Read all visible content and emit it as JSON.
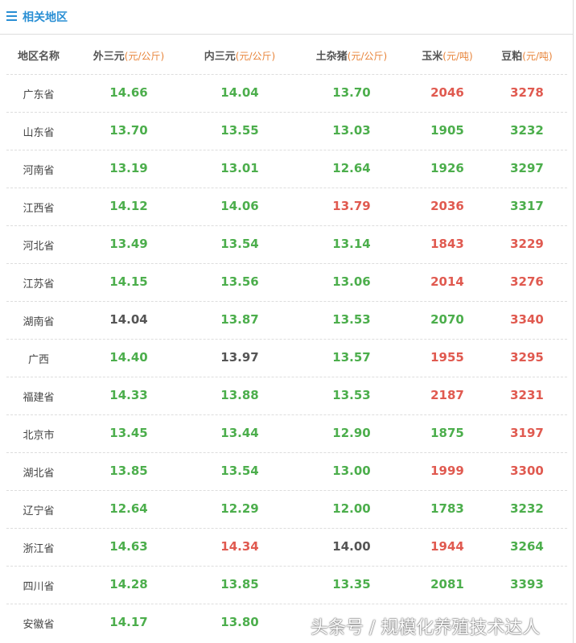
{
  "header": {
    "title": "相关地区"
  },
  "table": {
    "columns": [
      {
        "name": "地区名称"
      },
      {
        "name": "外三元",
        "unit": "(元/公斤)"
      },
      {
        "name": "内三元",
        "unit": "(元/公斤)"
      },
      {
        "name": "土杂猪",
        "unit": "(元/公斤)"
      },
      {
        "name": "玉米",
        "unit": "(元/吨)"
      },
      {
        "name": "豆粕",
        "unit": "(元/吨)"
      }
    ],
    "colors": {
      "green": "#4cae4c",
      "red": "#e05a50",
      "gray": "#555555"
    },
    "rows": [
      {
        "region": "广东省",
        "cells": [
          {
            "text": "14.66",
            "color": "green"
          },
          {
            "text": "14.04",
            "color": "green"
          },
          {
            "text": "13.70",
            "color": "green"
          },
          {
            "text": "2046",
            "color": "red"
          },
          {
            "text": "3278",
            "color": "red"
          }
        ]
      },
      {
        "region": "山东省",
        "cells": [
          {
            "text": "13.70",
            "color": "green"
          },
          {
            "text": "13.55",
            "color": "green"
          },
          {
            "text": "13.03",
            "color": "green"
          },
          {
            "text": "1905",
            "color": "green"
          },
          {
            "text": "3232",
            "color": "green"
          }
        ]
      },
      {
        "region": "河南省",
        "cells": [
          {
            "text": "13.19",
            "color": "green"
          },
          {
            "text": "13.01",
            "color": "green"
          },
          {
            "text": "12.64",
            "color": "green"
          },
          {
            "text": "1926",
            "color": "green"
          },
          {
            "text": "3297",
            "color": "green"
          }
        ]
      },
      {
        "region": "江西省",
        "cells": [
          {
            "text": "14.12",
            "color": "green"
          },
          {
            "text": "14.06",
            "color": "green"
          },
          {
            "text": "13.79",
            "color": "red"
          },
          {
            "text": "2036",
            "color": "red"
          },
          {
            "text": "3317",
            "color": "green"
          }
        ]
      },
      {
        "region": "河北省",
        "cells": [
          {
            "text": "13.49",
            "color": "green"
          },
          {
            "text": "13.54",
            "color": "green"
          },
          {
            "text": "13.14",
            "color": "green"
          },
          {
            "text": "1843",
            "color": "red"
          },
          {
            "text": "3229",
            "color": "red"
          }
        ]
      },
      {
        "region": "江苏省",
        "cells": [
          {
            "text": "14.15",
            "color": "green"
          },
          {
            "text": "13.56",
            "color": "green"
          },
          {
            "text": "13.06",
            "color": "green"
          },
          {
            "text": "2014",
            "color": "red"
          },
          {
            "text": "3276",
            "color": "red"
          }
        ]
      },
      {
        "region": "湖南省",
        "cells": [
          {
            "text": "14.04",
            "color": "gray"
          },
          {
            "text": "13.87",
            "color": "green"
          },
          {
            "text": "13.53",
            "color": "green"
          },
          {
            "text": "2070",
            "color": "green"
          },
          {
            "text": "3340",
            "color": "red"
          }
        ]
      },
      {
        "region": "广西",
        "cells": [
          {
            "text": "14.40",
            "color": "green"
          },
          {
            "text": "13.97",
            "color": "gray"
          },
          {
            "text": "13.57",
            "color": "green"
          },
          {
            "text": "1955",
            "color": "red"
          },
          {
            "text": "3295",
            "color": "red"
          }
        ]
      },
      {
        "region": "福建省",
        "cells": [
          {
            "text": "14.33",
            "color": "green"
          },
          {
            "text": "13.88",
            "color": "green"
          },
          {
            "text": "13.53",
            "color": "green"
          },
          {
            "text": "2187",
            "color": "red"
          },
          {
            "text": "3231",
            "color": "red"
          }
        ]
      },
      {
        "region": "北京市",
        "cells": [
          {
            "text": "13.45",
            "color": "green"
          },
          {
            "text": "13.44",
            "color": "green"
          },
          {
            "text": "12.90",
            "color": "green"
          },
          {
            "text": "1875",
            "color": "green"
          },
          {
            "text": "3197",
            "color": "red"
          }
        ]
      },
      {
        "region": "湖北省",
        "cells": [
          {
            "text": "13.85",
            "color": "green"
          },
          {
            "text": "13.54",
            "color": "green"
          },
          {
            "text": "13.00",
            "color": "green"
          },
          {
            "text": "1999",
            "color": "red"
          },
          {
            "text": "3300",
            "color": "red"
          }
        ]
      },
      {
        "region": "辽宁省",
        "cells": [
          {
            "text": "12.64",
            "color": "green"
          },
          {
            "text": "12.29",
            "color": "green"
          },
          {
            "text": "12.00",
            "color": "green"
          },
          {
            "text": "1783",
            "color": "green"
          },
          {
            "text": "3232",
            "color": "green"
          }
        ]
      },
      {
        "region": "浙江省",
        "cells": [
          {
            "text": "14.63",
            "color": "green"
          },
          {
            "text": "14.34",
            "color": "red"
          },
          {
            "text": "14.00",
            "color": "gray"
          },
          {
            "text": "1944",
            "color": "red"
          },
          {
            "text": "3264",
            "color": "green"
          }
        ]
      },
      {
        "region": "四川省",
        "cells": [
          {
            "text": "14.28",
            "color": "green"
          },
          {
            "text": "13.85",
            "color": "green"
          },
          {
            "text": "13.35",
            "color": "green"
          },
          {
            "text": "2081",
            "color": "green"
          },
          {
            "text": "3393",
            "color": "green"
          }
        ]
      },
      {
        "region": "安徽省",
        "cells": [
          {
            "text": "14.17",
            "color": "green"
          },
          {
            "text": "13.80",
            "color": "green"
          }
        ]
      }
    ]
  },
  "watermark": "头条号 / 规模化养殖技术达人"
}
